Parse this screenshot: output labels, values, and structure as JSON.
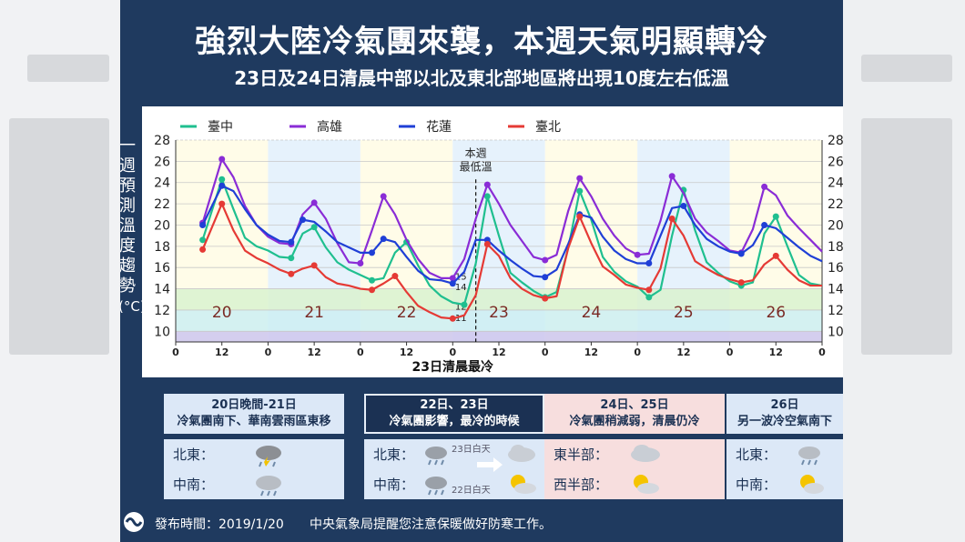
{
  "title": "強烈大陸冷氣團來襲，本週天氣明顯轉冷",
  "subtitle": "23日及24日清晨中部以北及東北部地區將出現10度左右低溫",
  "y_axis_title_chars": [
    "一",
    "週",
    "預",
    "測",
    "溫",
    "度",
    "趨",
    "勢",
    "(°C)"
  ],
  "chart_data": {
    "type": "line",
    "ylim": [
      9,
      28
    ],
    "yticks": [
      10,
      12,
      14,
      16,
      18,
      20,
      22,
      24,
      26,
      28
    ],
    "hour_ticks": [
      "0",
      "12",
      "0",
      "12",
      "0",
      "12",
      "0",
      "12",
      "0",
      "12",
      "0",
      "12",
      "0",
      "12",
      "0"
    ],
    "day_labels": [
      "20",
      "21",
      "22",
      "23",
      "24",
      "25",
      "26"
    ],
    "xlabel": "23日清晨最冷",
    "annotation": "本週\n最低溫",
    "min_labels": [
      "15",
      "14",
      "12",
      "11"
    ],
    "colors_bands": {
      "green_band": [
        12,
        14
      ],
      "teal_band": [
        10,
        12
      ],
      "purple_band": [
        9,
        10
      ]
    },
    "series": [
      {
        "name": "臺中",
        "color": "#1fbf8f",
        "x": [
          7,
          12,
          15,
          18,
          21,
          24,
          27,
          30,
          33,
          36,
          39,
          42,
          45,
          48,
          51,
          54,
          57,
          60,
          63,
          66,
          69,
          72,
          75,
          78,
          81,
          84,
          87,
          90,
          93,
          96,
          99,
          102,
          105,
          108,
          111,
          114,
          117,
          120,
          123,
          126,
          129,
          132,
          135,
          138,
          141,
          144,
          147,
          150,
          153,
          156,
          159,
          162,
          165,
          168
        ],
        "values": [
          18.6,
          24.3,
          21.5,
          18.8,
          18.0,
          17.6,
          17.0,
          16.9,
          19.2,
          19.8,
          17.9,
          16.5,
          15.8,
          15.3,
          14.8,
          15.0,
          17.4,
          18.4,
          16.2,
          14.3,
          13.3,
          12.7,
          12.5,
          16.4,
          22.7,
          19.0,
          15.5,
          14.6,
          13.8,
          13.2,
          13.7,
          17.8,
          23.2,
          20.5,
          17.0,
          15.6,
          14.7,
          14.2,
          13.2,
          13.9,
          19.0,
          23.3,
          19.5,
          16.5,
          15.5,
          14.7,
          14.3,
          14.6,
          19.2,
          20.8,
          18.0,
          15.3,
          14.5,
          14.3
        ]
      },
      {
        "name": "高雄",
        "color": "#8a2cd6",
        "x": [
          7,
          12,
          15,
          18,
          21,
          24,
          27,
          30,
          33,
          36,
          39,
          42,
          45,
          48,
          51,
          54,
          57,
          60,
          63,
          66,
          69,
          72,
          75,
          78,
          81,
          84,
          87,
          90,
          93,
          96,
          99,
          102,
          105,
          108,
          111,
          114,
          117,
          120,
          123,
          126,
          129,
          132,
          135,
          138,
          141,
          144,
          147,
          150,
          153,
          156,
          159,
          162,
          165,
          168
        ],
        "values": [
          20.2,
          26.2,
          24.5,
          21.8,
          20.0,
          18.9,
          18.3,
          18.2,
          21.0,
          22.1,
          20.6,
          18.3,
          16.5,
          16.4,
          19.5,
          22.7,
          21.0,
          18.6,
          16.8,
          15.5,
          15.0,
          15.0,
          16.8,
          20.6,
          23.8,
          22.0,
          20.0,
          18.5,
          17.0,
          16.7,
          17.2,
          21.3,
          24.4,
          22.7,
          20.6,
          19.0,
          17.8,
          17.2,
          17.3,
          20.4,
          24.6,
          23.0,
          20.6,
          19.3,
          18.5,
          17.6,
          17.4,
          19.6,
          23.6,
          22.8,
          20.9,
          19.7,
          18.6,
          17.5
        ]
      },
      {
        "name": "花蓮",
        "color": "#1f3fd6",
        "x": [
          7,
          12,
          15,
          18,
          21,
          24,
          27,
          30,
          33,
          36,
          39,
          42,
          45,
          48,
          51,
          54,
          57,
          60,
          63,
          66,
          69,
          72,
          75,
          78,
          81,
          84,
          87,
          90,
          93,
          96,
          99,
          102,
          105,
          108,
          111,
          114,
          117,
          120,
          123,
          126,
          129,
          132,
          135,
          138,
          141,
          144,
          147,
          150,
          153,
          156,
          159,
          162,
          165,
          168
        ],
        "values": [
          20.0,
          23.7,
          23.2,
          21.5,
          20.0,
          19.1,
          18.5,
          18.4,
          20.5,
          20.3,
          19.4,
          18.4,
          17.9,
          17.4,
          17.4,
          18.7,
          18.4,
          17.0,
          15.7,
          14.9,
          14.8,
          14.5,
          15.6,
          18.6,
          18.6,
          17.6,
          16.7,
          15.9,
          15.2,
          15.1,
          15.8,
          18.2,
          21.0,
          20.7,
          18.9,
          17.6,
          16.8,
          16.4,
          16.4,
          19.0,
          21.6,
          21.8,
          20.0,
          18.7,
          18.0,
          17.5,
          17.3,
          18.1,
          20.0,
          19.7,
          18.8,
          17.9,
          17.1,
          16.6
        ]
      },
      {
        "name": "臺北",
        "color": "#e53a35",
        "x": [
          7,
          12,
          15,
          18,
          21,
          24,
          27,
          30,
          33,
          36,
          39,
          42,
          45,
          48,
          51,
          54,
          57,
          60,
          63,
          66,
          69,
          72,
          75,
          78,
          81,
          84,
          87,
          90,
          93,
          96,
          99,
          102,
          105,
          108,
          111,
          114,
          117,
          120,
          123,
          126,
          129,
          132,
          135,
          138,
          141,
          144,
          147,
          150,
          153,
          156,
          159,
          162,
          165,
          168
        ],
        "values": [
          17.7,
          22.0,
          19.5,
          17.6,
          16.9,
          16.4,
          15.8,
          15.4,
          15.9,
          16.2,
          15.1,
          14.5,
          14.3,
          14.0,
          13.9,
          14.5,
          15.2,
          13.7,
          12.4,
          11.8,
          11.3,
          11.2,
          11.5,
          13.4,
          18.2,
          17.1,
          15.0,
          14.0,
          13.4,
          13.1,
          13.3,
          17.8,
          20.8,
          18.3,
          16.1,
          15.3,
          14.4,
          14.1,
          13.9,
          15.9,
          20.6,
          19.0,
          16.6,
          15.9,
          15.3,
          14.9,
          14.6,
          14.8,
          16.3,
          17.1,
          15.8,
          14.8,
          14.3,
          14.3
        ]
      }
    ]
  },
  "cards": [
    {
      "line1": "20日晚間-21日",
      "line2": "冷氣團南下、華南雲雨區東移",
      "row1_label": "北東：",
      "row2_label": "中南：",
      "icon1": "thunder-rain-cloud-icon",
      "icon2": "rain-cloud-icon"
    },
    {
      "line1": "22日、23日",
      "line2": "冷氣團影響，最冷的時候",
      "row1_label": "北東：",
      "row2_label": "中南：",
      "icon1": "rain-cloud-icon",
      "icon2": "rain-cloud-icon",
      "note1": "23日白天",
      "note2": "22日白天",
      "after1": "cloud-icon",
      "after2": "sun-cloud-icon"
    },
    {
      "line1": "24日、25日",
      "line2": "冷氣團稍減弱，清晨仍冷",
      "row1_label": "東半部：",
      "row2_label": "西半部：",
      "icon1": "cloud-icon",
      "icon2": "sun-cloud-icon"
    },
    {
      "line1": "26日",
      "line2": "另一波冷空氣南下",
      "row1_label": "北東：",
      "row2_label": "中南：",
      "icon1": "rain-cloud-icon",
      "icon2": "sun-cloud-icon"
    }
  ],
  "footer": {
    "issue_time": "發布時間：2019/1/20",
    "notice": "中央氣象局提醒您注意保暖做好防寒工作。"
  },
  "colors": {
    "panel": "#1f3a5f",
    "card_blue": "#dce8f7",
    "card_pink": "#f7dede",
    "card_dark": "#1b3153"
  }
}
